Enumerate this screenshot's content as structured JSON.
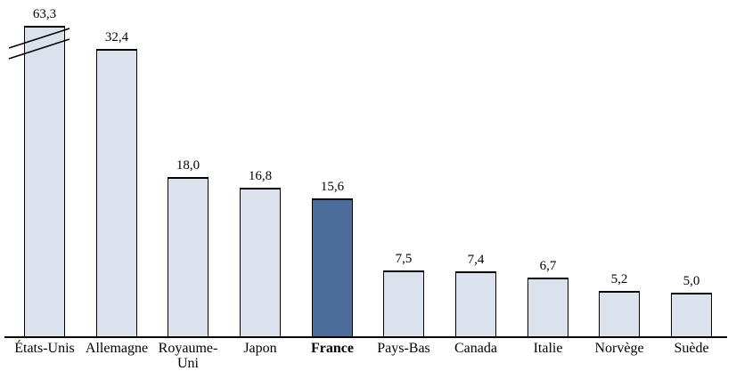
{
  "chart_data": {
    "type": "bar",
    "title": "",
    "xlabel": "",
    "ylabel": "",
    "categories": [
      "États-Unis",
      "Allemagne",
      "Royaume-Uni",
      "Japon",
      "France",
      "Pays-Bas",
      "Canada",
      "Italie",
      "Norvège",
      "Suède"
    ],
    "values": [
      63.3,
      32.4,
      18.0,
      16.8,
      15.6,
      7.5,
      7.4,
      6.7,
      5.2,
      5.0
    ],
    "value_labels": [
      "63,3",
      "32,4",
      "18,0",
      "16,8",
      "15,6",
      "7,5",
      "7,4",
      "6,7",
      "5,2",
      "5,0"
    ],
    "tick_labels": [
      "États-Unis",
      "Allemagne",
      "Royaume-\nUni",
      "Japon",
      "France",
      "Pays-Bas",
      "Canada",
      "Italie",
      "Norvège",
      "Suède"
    ],
    "highlight_index": 4,
    "highlight_category": "France",
    "axis_break": {
      "index": 0,
      "style": "double-slash",
      "note": "États-Unis bar truncated; drawn height capped while labeled 63,3"
    },
    "ylim": [
      0,
      35
    ],
    "grid": false,
    "legend": false,
    "y_axis_visible": false,
    "decimal_separator": ",",
    "colors": {
      "bar_fill": "#dbe2ee",
      "highlight_fill": "#4c6d9c",
      "bar_border": "#000000",
      "axis": "#000000",
      "text": "#000000",
      "background": "#ffffff"
    }
  }
}
